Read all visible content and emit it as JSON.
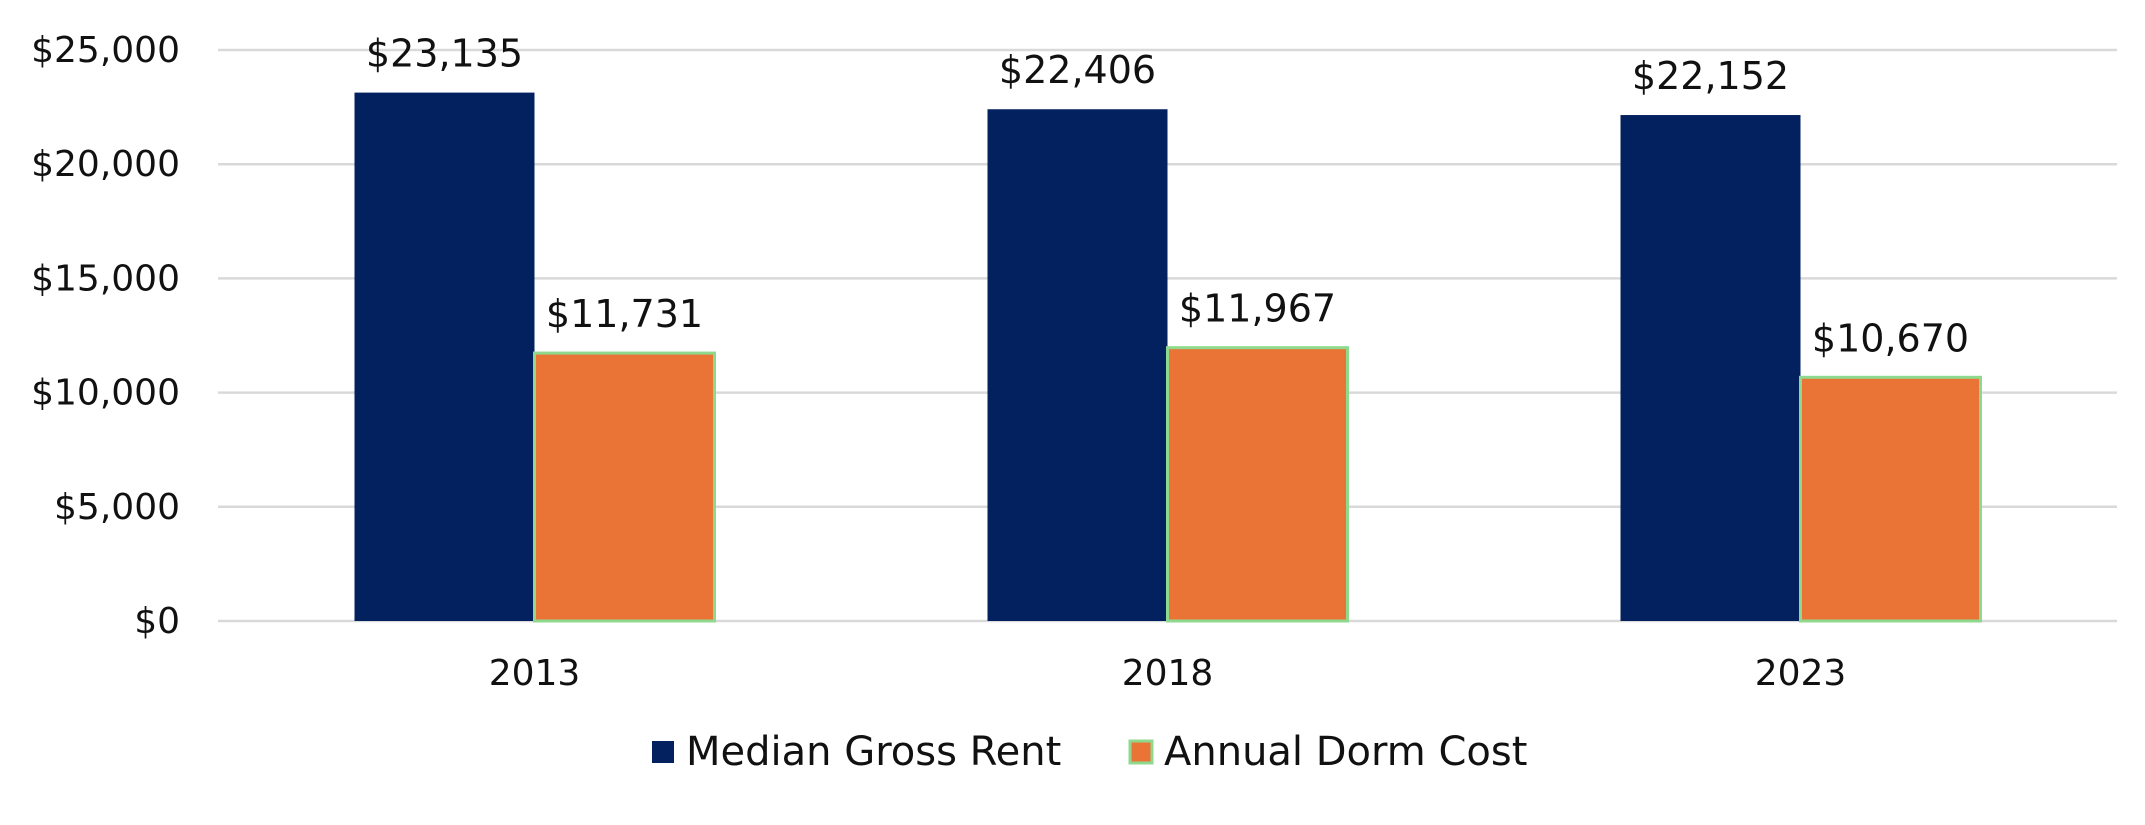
{
  "chart_data": {
    "type": "bar",
    "categories": [
      "2013",
      "2018",
      "2023"
    ],
    "series": [
      {
        "name": "Median Gross Rent",
        "values": [
          23135,
          22406,
          22152
        ],
        "labels": [
          "$23,135",
          "$22,406",
          "$22,152"
        ],
        "color": "#03215f"
      },
      {
        "name": "Annual Dorm Cost",
        "values": [
          11731,
          11967,
          10670
        ],
        "labels": [
          "$11,731",
          "$11,967",
          "$10,670"
        ],
        "color": "#e97435",
        "edge_color": "#8fd98f"
      }
    ],
    "y_ticks": [
      0,
      5000,
      10000,
      15000,
      20000,
      25000
    ],
    "y_tick_labels": [
      "$0",
      "$5,000",
      "$10,000",
      "$15,000",
      "$20,000",
      "$25,000"
    ],
    "ylim": [
      0,
      25000
    ],
    "grid": true,
    "grid_color": "#d9d9d9",
    "legend_position": "bottom"
  }
}
